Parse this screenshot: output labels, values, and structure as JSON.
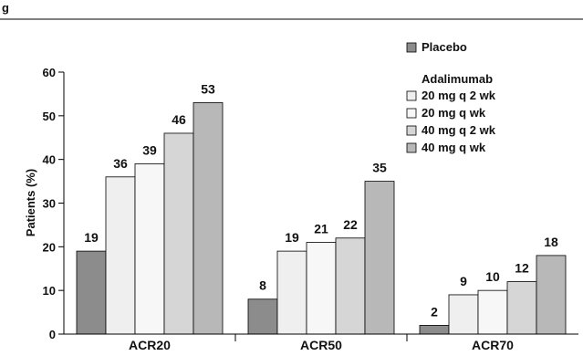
{
  "header": {
    "label": "g"
  },
  "chart_data": {
    "type": "bar",
    "categories": [
      "ACR20",
      "ACR50",
      "ACR70"
    ],
    "ylabel": "Patients (%)",
    "ylim": [
      0,
      60
    ],
    "yticks": [
      0,
      10,
      20,
      30,
      40,
      50,
      60
    ],
    "grid": false,
    "legend_position": "top-right",
    "legend_group_title": "Adalimumab",
    "series": [
      {
        "name": "Placebo",
        "color": "#8c8c8c",
        "values": [
          19,
          8,
          2
        ]
      },
      {
        "name": "20 mg q 2 wk",
        "color": "#efefef",
        "values": [
          36,
          19,
          9
        ]
      },
      {
        "name": "20 mg q wk",
        "color": "#f7f7f7",
        "values": [
          39,
          21,
          10
        ]
      },
      {
        "name": "40 mg q 2 wk",
        "color": "#d6d6d6",
        "values": [
          46,
          22,
          12
        ]
      },
      {
        "name": "40 mg q wk",
        "color": "#b8b8b8",
        "values": [
          53,
          35,
          18
        ]
      }
    ]
  }
}
